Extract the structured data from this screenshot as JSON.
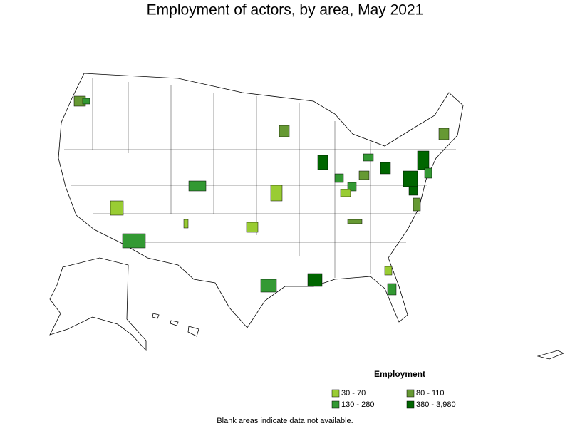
{
  "title": "Employment of actors, by area, May 2021",
  "legend": {
    "title": "Employment",
    "items": [
      {
        "label": "30 - 70",
        "color": "#99cc33"
      },
      {
        "label": "80 - 110",
        "color": "#669933"
      },
      {
        "label": "130 - 280",
        "color": "#339933"
      },
      {
        "label": "380 - 3,980",
        "color": "#006600"
      }
    ]
  },
  "footnote": "Blank areas indicate data not available."
}
